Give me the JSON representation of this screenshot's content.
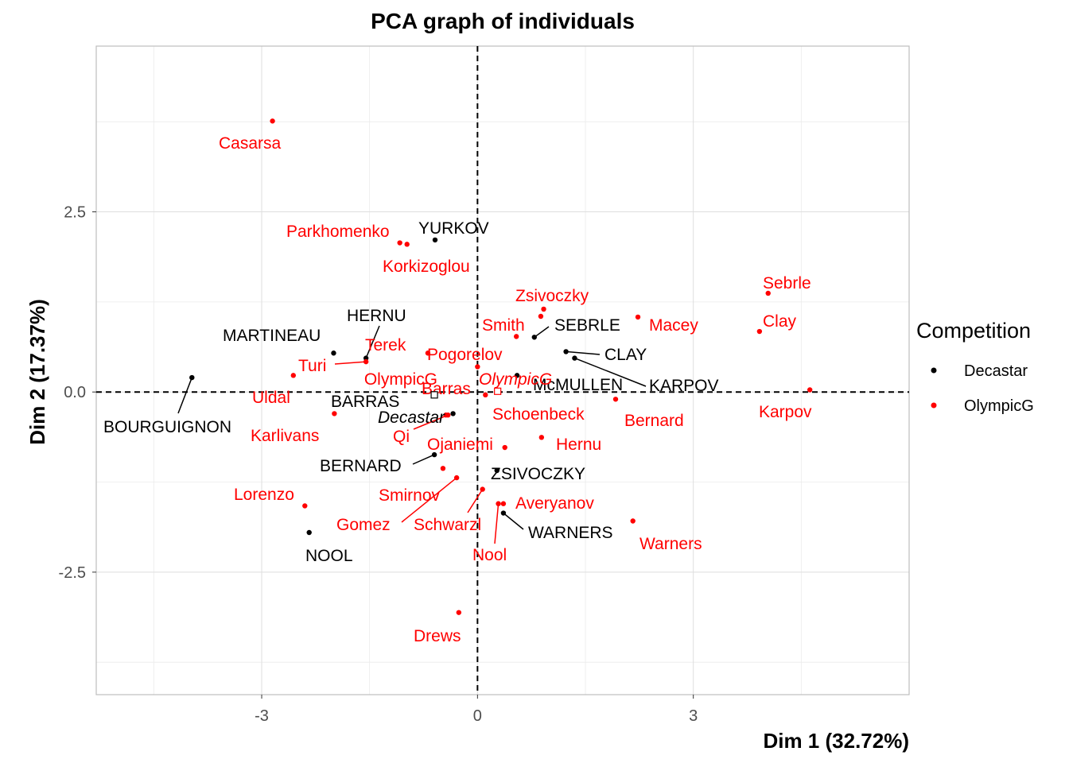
{
  "chart_data": {
    "type": "scatter",
    "title": "PCA graph of individuals",
    "xlabel": "Dim 1 (32.72%)",
    "ylabel": "Dim 2 (17.37%)",
    "xlim": [
      -5.3,
      6.0
    ],
    "ylim": [
      -4.2,
      4.8
    ],
    "xticks": [
      -3,
      0,
      3
    ],
    "yticks": [
      2.5,
      0.0,
      -2.5
    ],
    "xtick_labels": [
      "-3",
      "0",
      "3"
    ],
    "ytick_labels": [
      "2.5",
      "0.0",
      "-2.5"
    ],
    "grid": true,
    "reference_lines": [
      {
        "axis": "x",
        "value": 0,
        "style": "dashed"
      },
      {
        "axis": "y",
        "value": 0,
        "style": "dashed"
      }
    ],
    "legend": {
      "title": "Competition",
      "position": "right",
      "entries": [
        {
          "name": "Decastar",
          "color": "#000000"
        },
        {
          "name": "OlympicG",
          "color": "#ff0000"
        }
      ]
    },
    "series": [
      {
        "name": "Decastar",
        "color": "#000000",
        "points": [
          {
            "label": "YURKOV",
            "x": -0.59,
            "y": 2.11
          },
          {
            "label": "HERNU",
            "x": -1.55,
            "y": 0.47
          },
          {
            "label": "MARTINEAU",
            "x": -2.0,
            "y": 0.54
          },
          {
            "label": "SEBRLE",
            "x": 0.79,
            "y": 0.76
          },
          {
            "label": "CLAY",
            "x": 1.23,
            "y": 0.56
          },
          {
            "label": "KARPOV",
            "x": 1.35,
            "y": 0.47
          },
          {
            "label": "McMULLEN",
            "x": 0.55,
            "y": 0.23
          },
          {
            "label": "BOURGUIGNON",
            "x": -3.97,
            "y": 0.2
          },
          {
            "label": "BARRAS",
            "x": -0.34,
            "y": -0.3
          },
          {
            "label": "BERNARD",
            "x": -0.6,
            "y": -0.87
          },
          {
            "label": "ZSIVOCZKY",
            "x": 0.27,
            "y": -1.09
          },
          {
            "label": "WARNERS",
            "x": 0.36,
            "y": -1.68
          },
          {
            "label": "NOOL",
            "x": -2.34,
            "y": -1.95
          }
        ]
      },
      {
        "name": "OlympicG",
        "color": "#ff0000",
        "points": [
          {
            "label": "Casarsa",
            "x": -2.85,
            "y": 3.76
          },
          {
            "label": "Parkhomenko",
            "x": -1.08,
            "y": 2.07
          },
          {
            "label": "Korkizoglou",
            "x": -0.98,
            "y": 2.05
          },
          {
            "label": "Sebrle",
            "x": 4.04,
            "y": 1.37
          },
          {
            "label": "Zsivoczky",
            "x": 0.92,
            "y": 1.15
          },
          {
            "label": "Smith",
            "x": 0.88,
            "y": 1.05
          },
          {
            "label": "Macey",
            "x": 2.23,
            "y": 1.04
          },
          {
            "label": "Clay",
            "x": 3.92,
            "y": 0.84
          },
          {
            "label": "Pogorelov",
            "x": 0.54,
            "y": 0.77
          },
          {
            "label": "Terek",
            "x": -0.69,
            "y": 0.54
          },
          {
            "label": "Turi",
            "x": -1.55,
            "y": 0.42
          },
          {
            "label": "OlympicG",
            "x": 0.0,
            "y": 0.35
          },
          {
            "label": "Uldal",
            "x": -2.56,
            "y": 0.23
          },
          {
            "label": "Karpov",
            "x": 4.62,
            "y": 0.03
          },
          {
            "label": "Schoenbeck",
            "x": 0.11,
            "y": -0.04
          },
          {
            "label": "Bernard",
            "x": 1.92,
            "y": -0.1
          },
          {
            "label": "Barras",
            "x": -0.44,
            "y": -0.32
          },
          {
            "label": "Karlivans",
            "x": -1.99,
            "y": -0.3
          },
          {
            "label": "Qi",
            "x": -0.41,
            "y": -0.32
          },
          {
            "label": "Hernu",
            "x": 0.89,
            "y": -0.63
          },
          {
            "label": "Ojaniemi",
            "x": 0.38,
            "y": -0.77
          },
          {
            "label": "Smirnov",
            "x": -0.48,
            "y": -1.06
          },
          {
            "label": "Gomez",
            "x": -0.29,
            "y": -1.19
          },
          {
            "label": "Schwarzl",
            "x": 0.07,
            "y": -1.35
          },
          {
            "label": "Averyanov",
            "x": 0.36,
            "y": -1.55
          },
          {
            "label": "Nool",
            "x": 0.29,
            "y": -1.55
          },
          {
            "label": "Lorenzo",
            "x": -2.4,
            "y": -1.58
          },
          {
            "label": "Warners",
            "x": 2.16,
            "y": -1.79
          },
          {
            "label": "Drews",
            "x": -0.26,
            "y": -3.06
          }
        ]
      }
    ],
    "supplementary_points": [
      {
        "label": "Decastar",
        "x": -0.6,
        "y": -0.04,
        "color": "#000000",
        "italic": true
      },
      {
        "label": "OlympicG",
        "x": 0.28,
        "y": 0.01,
        "color": "#ff0000",
        "italic": true
      }
    ]
  }
}
